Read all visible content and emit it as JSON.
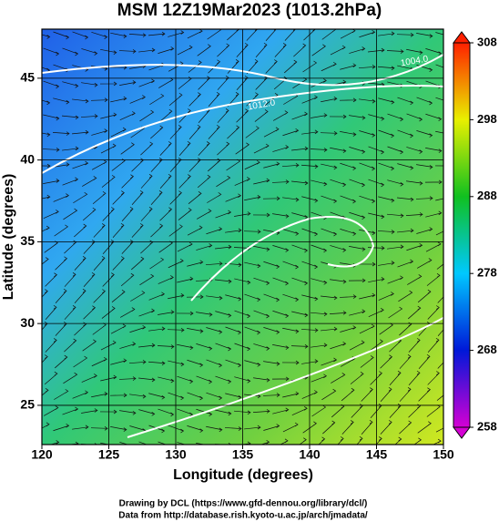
{
  "chart_data": {
    "type": "map",
    "title": "MSM 12Z19Mar2023 (1013.2hPa)",
    "x_label": "Longitude (degrees)",
    "y_label": "Latitude  (degrees)",
    "xlim": [
      120,
      150
    ],
    "xticks": [
      120,
      125,
      130,
      135,
      140,
      145,
      150
    ],
    "ylim": [
      22.6,
      48
    ],
    "yticks": [
      25,
      30,
      35,
      40,
      45
    ],
    "grid": true,
    "colorbar": {
      "lim": [
        258,
        308
      ],
      "ticks": [
        258,
        268,
        278,
        288,
        298,
        308
      ],
      "colors": [
        "#d400d4",
        "#0018d8",
        "#00c8ff",
        "#10c020",
        "#e8f000",
        "#ff2000"
      ]
    },
    "contour_labels": [
      "1004.0",
      "1012.0"
    ],
    "credits": [
      "Drawing by DCL (https://www.gfd-dennou.org/library/dcl/)",
      "Data from http://database.rish.kyoto-u.ac.jp/arch/jmadata/"
    ]
  }
}
